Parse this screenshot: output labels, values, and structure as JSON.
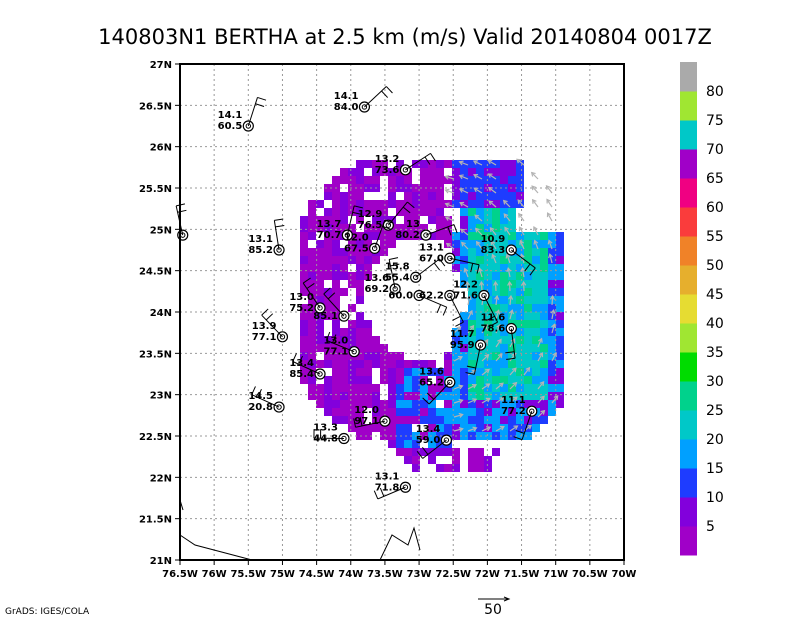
{
  "title": "140803N1 BERTHA at 2.5 km (m/s) Valid 20140804 0017Z",
  "credit": "GrADS: IGES/COLA",
  "reference_vector": {
    "label": "50",
    "value": 50
  },
  "colorbar": {
    "labels": [
      "5",
      "10",
      "15",
      "20",
      "25",
      "30",
      "35",
      "40",
      "45",
      "50",
      "55",
      "60",
      "65",
      "70",
      "75",
      "80"
    ],
    "colors": [
      "#a000c8",
      "#8200dc",
      "#1e3cff",
      "#00a0ff",
      "#00c8c8",
      "#00d28c",
      "#00dc00",
      "#a0e632",
      "#e6dc32",
      "#e6af2d",
      "#f08228",
      "#fa3c3c",
      "#f00082",
      "#a000c8",
      "#00c8c8",
      "#a0e632",
      "#aaaaaa"
    ]
  },
  "chart_data": {
    "type": "scatter",
    "title": "140803N1 BERTHA at 2.5 km (m/s) Valid 20140804 0017Z",
    "xlim": [
      -76.5,
      -70
    ],
    "ylim": [
      21,
      27
    ],
    "grid": true,
    "x_tick_labels": [
      "76.5W",
      "76W",
      "75.5W",
      "75W",
      "74.5W",
      "74W",
      "73.5W",
      "73W",
      "72.5W",
      "72W",
      "71.5W",
      "71W",
      "70.5W",
      "70W"
    ],
    "y_tick_labels": [
      "21N",
      "21.5N",
      "22N",
      "22.5N",
      "23N",
      "23.5N",
      "24N",
      "24.5N",
      "25N",
      "25.5N",
      "26N",
      "26.5N",
      "27N"
    ],
    "stations": [
      {
        "lon": -73.8,
        "lat": 26.48,
        "top": "14.1",
        "bottom": "84.0"
      },
      {
        "lon": -75.5,
        "lat": 26.25,
        "top": "14.1",
        "bottom": "60.5"
      },
      {
        "lon": -73.2,
        "lat": 25.72,
        "top": "13.2",
        "bottom": "73.6"
      },
      {
        "lon": -76.46,
        "lat": 24.93,
        "top": "",
        "bottom": ""
      },
      {
        "lon": -74.05,
        "lat": 24.93,
        "top": "13.7",
        "bottom": "70.7"
      },
      {
        "lon": -73.45,
        "lat": 25.05,
        "top": "12.9",
        "bottom": "76.5"
      },
      {
        "lon": -72.9,
        "lat": 24.93,
        "top": "13",
        "bottom": "80.2"
      },
      {
        "lon": -75.05,
        "lat": 24.75,
        "top": "13.1",
        "bottom": "85.2"
      },
      {
        "lon": -73.65,
        "lat": 24.77,
        "top": "12.0",
        "bottom": "67.5"
      },
      {
        "lon": -72.55,
        "lat": 24.65,
        "top": "13.1",
        "bottom": "67.0"
      },
      {
        "lon": -71.65,
        "lat": 24.75,
        "top": "10.9",
        "bottom": "83.3"
      },
      {
        "lon": -73.05,
        "lat": 24.42,
        "top": "15.8",
        "bottom": "55.4"
      },
      {
        "lon": -73.35,
        "lat": 24.28,
        "top": "13.6",
        "bottom": "69.2"
      },
      {
        "lon": -73.0,
        "lat": 24.2,
        "top": "",
        "bottom": "60.0"
      },
      {
        "lon": -72.55,
        "lat": 24.2,
        "top": "",
        "bottom": "62.2"
      },
      {
        "lon": -72.05,
        "lat": 24.2,
        "top": "12.2",
        "bottom": "71.6"
      },
      {
        "lon": -74.45,
        "lat": 24.05,
        "top": "13.0",
        "bottom": "75.2"
      },
      {
        "lon": -74.1,
        "lat": 23.95,
        "top": "",
        "bottom": "85.1"
      },
      {
        "lon": -71.65,
        "lat": 23.8,
        "top": "11.6",
        "bottom": "78.6"
      },
      {
        "lon": -75.0,
        "lat": 23.7,
        "top": "13.9",
        "bottom": "77.1"
      },
      {
        "lon": -72.1,
        "lat": 23.6,
        "top": "11.7",
        "bottom": "95.9"
      },
      {
        "lon": -73.95,
        "lat": 23.52,
        "top": "13.0",
        "bottom": "77.1"
      },
      {
        "lon": -74.45,
        "lat": 23.25,
        "top": "13.4",
        "bottom": "85.4"
      },
      {
        "lon": -72.55,
        "lat": 23.15,
        "top": "13.6",
        "bottom": "65.2"
      },
      {
        "lon": -75.05,
        "lat": 22.85,
        "top": "14.5",
        "bottom": "20.8"
      },
      {
        "lon": -71.35,
        "lat": 22.8,
        "top": "11.1",
        "bottom": "77.2"
      },
      {
        "lon": -73.5,
        "lat": 22.68,
        "top": "12.0",
        "bottom": "97.1"
      },
      {
        "lon": -74.1,
        "lat": 22.47,
        "top": "13.3",
        "bottom": "44.8"
      },
      {
        "lon": -72.6,
        "lat": 22.45,
        "top": "13.4",
        "bottom": "59.0"
      },
      {
        "lon": -73.2,
        "lat": 21.88,
        "top": "13.1",
        "bottom": "71.8"
      }
    ]
  }
}
